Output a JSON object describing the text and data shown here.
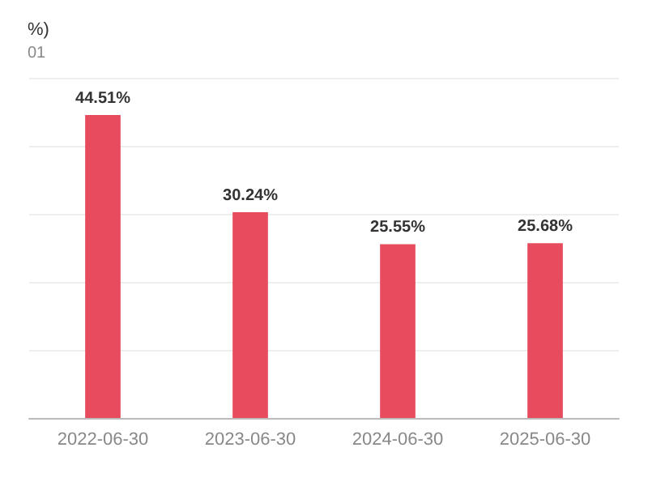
{
  "chart_data": {
    "type": "bar",
    "title": "%)",
    "subtitle": "01",
    "categories": [
      "2022-06-30",
      "2023-06-30",
      "2024-06-30",
      "2025-06-30"
    ],
    "values": [
      44.51,
      30.24,
      25.55,
      25.68
    ],
    "value_labels": [
      "44.51%",
      "30.24%",
      "25.55%",
      "25.68%"
    ],
    "color": "#e64c5e",
    "ylim": [
      0,
      50
    ],
    "yticks": [
      0,
      10,
      20,
      30,
      40,
      50
    ],
    "grid": "y",
    "tick_labels": "x"
  }
}
